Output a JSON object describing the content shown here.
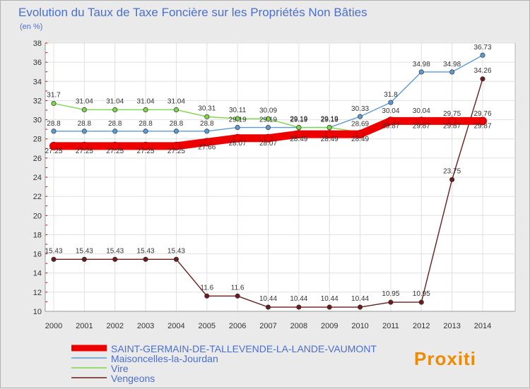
{
  "chart_data": {
    "type": "line",
    "title": "Evolution du Taux de Taxe Foncière sur les Propriétés Non Bâties",
    "ylabel": "(en %)",
    "xlabel": "",
    "categories": [
      "2000",
      "2001",
      "2002",
      "2003",
      "2004",
      "2005",
      "2006",
      "2007",
      "2008",
      "2009",
      "2010",
      "2011",
      "2012",
      "2013",
      "2014"
    ],
    "ylim": [
      10,
      38
    ],
    "yticks": [
      10,
      12,
      14,
      16,
      18,
      20,
      22,
      24,
      26,
      28,
      30,
      32,
      34,
      36,
      38
    ],
    "grid": true,
    "series": [
      {
        "name": "SAINT-GERMAIN-DE-TALLEVENDE-LA-LANDE-VAUMONT",
        "color": "#ee0000",
        "values": [
          27.25,
          27.25,
          27.25,
          27.25,
          27.25,
          27.66,
          28.07,
          28.07,
          28.49,
          28.49,
          28.49,
          29.87,
          29.87,
          29.87,
          29.87
        ],
        "labels": [
          "27.25",
          "27.25",
          "27.25",
          "27.25",
          "27.25",
          "27.66",
          "28.07",
          "28.07",
          "28.49",
          "28.49",
          "28.49",
          "29.87",
          "29.87",
          "29.87",
          "29.87"
        ]
      },
      {
        "name": "Maisoncelles-la-Jourdan",
        "color": "#5b9bd5",
        "values": [
          28.8,
          28.8,
          28.8,
          28.8,
          28.8,
          28.8,
          29.19,
          29.19,
          29.19,
          29.19,
          30.33,
          31.8,
          34.98,
          34.98,
          36.73
        ],
        "labels": [
          "28.8",
          "28.8",
          "28.8",
          "28.8",
          "28.8",
          "28.8",
          "29.19",
          "29.19",
          "29.19",
          "29.19",
          "30.33",
          "31.8",
          "34.98",
          "34.98",
          "36.73"
        ]
      },
      {
        "name": "Vire",
        "color": "#7ed64a",
        "values": [
          31.7,
          31.04,
          31.04,
          31.04,
          31.04,
          30.31,
          30.11,
          30.09,
          29.19,
          29.19,
          28.69,
          30.04,
          30.04,
          29.75,
          29.76
        ],
        "labels": [
          "31.7",
          "31.04",
          "31.04",
          "31.04",
          "31.04",
          "30.31",
          "30.11",
          "30.09",
          "29.19",
          "29.19",
          "28.69",
          "30.04",
          "30.04",
          "29.75",
          "29.76"
        ]
      },
      {
        "name": "Vengeons",
        "color": "#6b1b1b",
        "values": [
          15.43,
          15.43,
          15.43,
          15.43,
          15.43,
          11.6,
          11.6,
          10.44,
          10.44,
          10.44,
          10.44,
          10.95,
          10.95,
          23.75,
          34.26
        ],
        "labels": [
          "15.43",
          "15.43",
          "15.43",
          "15.43",
          "15.43",
          "11.6",
          "11.6",
          "10.44",
          "10.44",
          "10.44",
          "10.44",
          "10.95",
          "10.95",
          "23.75",
          "34.26"
        ]
      }
    ],
    "legend": {
      "position": "bottom-left",
      "entries": [
        "SAINT-GERMAIN-DE-TALLEVENDE-LA-LANDE-VAUMONT",
        "Maisoncelles-la-Jourdan",
        "Vire",
        "Vengeons"
      ]
    },
    "logo_text": "Proxiti"
  }
}
